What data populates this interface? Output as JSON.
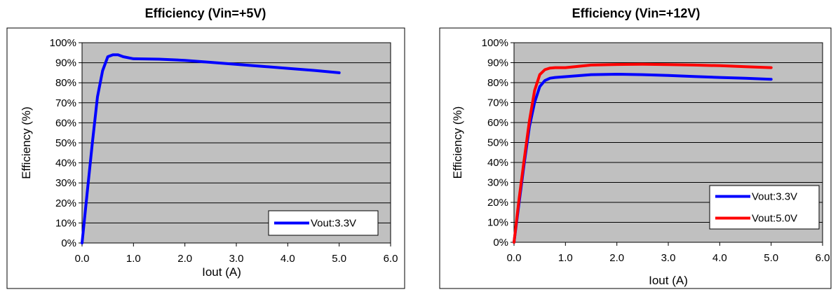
{
  "chart_data": [
    {
      "type": "line",
      "title": "Efficiency (Vin=+5V)",
      "xlabel": "Iout (A)",
      "ylabel": "Efficiency (%)",
      "xlim": [
        0,
        6
      ],
      "ylim": [
        0,
        100
      ],
      "x_ticks": [
        "0.0",
        "1.0",
        "2.0",
        "3.0",
        "4.0",
        "5.0",
        "6.0"
      ],
      "y_ticks": [
        "0%",
        "10%",
        "20%",
        "30%",
        "40%",
        "50%",
        "60%",
        "70%",
        "80%",
        "90%",
        "100%"
      ],
      "grid": true,
      "plot_background": "#c0c0c0",
      "legend_position": "bottom-right",
      "series": [
        {
          "name": "Vout:3.3V",
          "color": "#0000ff",
          "x": [
            0.0,
            0.1,
            0.2,
            0.3,
            0.4,
            0.5,
            0.6,
            0.7,
            0.8,
            1.0,
            1.5,
            2.0,
            2.5,
            3.0,
            3.5,
            4.0,
            4.5,
            5.0
          ],
          "y": [
            0,
            25,
            50,
            73,
            86,
            93,
            94,
            94,
            93,
            92,
            91.8,
            91.2,
            90.2,
            89.2,
            88.2,
            87.2,
            86.2,
            85
          ]
        }
      ]
    },
    {
      "type": "line",
      "title": "Efficiency (Vin=+12V)",
      "xlabel": "Iout (A)",
      "ylabel": "Efficiency (%)",
      "xlim": [
        0,
        6
      ],
      "ylim": [
        0,
        100
      ],
      "x_ticks": [
        "0.0",
        "1.0",
        "2.0",
        "3.0",
        "4.0",
        "5.0",
        "6.0"
      ],
      "y_ticks": [
        "0%",
        "10%",
        "20%",
        "30%",
        "40%",
        "50%",
        "60%",
        "70%",
        "80%",
        "90%",
        "100%"
      ],
      "grid": true,
      "plot_background": "#c0c0c0",
      "legend_position": "bottom-right",
      "series": [
        {
          "name": "Vout:3.3V",
          "color": "#0000ff",
          "x": [
            0.0,
            0.1,
            0.2,
            0.3,
            0.4,
            0.5,
            0.6,
            0.7,
            0.8,
            1.0,
            1.5,
            2.0,
            2.5,
            3.0,
            3.5,
            4.0,
            4.5,
            5.0
          ],
          "y": [
            0,
            20,
            40,
            58,
            70,
            78,
            81,
            82.2,
            82.6,
            83,
            84,
            84.2,
            84,
            83.6,
            83.1,
            82.6,
            82.2,
            81.7
          ]
        },
        {
          "name": "Vout:5.0V",
          "color": "#ff0000",
          "x": [
            0.0,
            0.1,
            0.2,
            0.3,
            0.4,
            0.5,
            0.6,
            0.7,
            0.8,
            1.0,
            1.5,
            2.0,
            2.5,
            3.0,
            3.5,
            4.0,
            4.5,
            5.0
          ],
          "y": [
            0,
            22,
            42,
            61,
            76,
            84,
            86.5,
            87.3,
            87.5,
            87.5,
            88.8,
            89.1,
            89.2,
            89,
            88.8,
            88.5,
            88,
            87.5
          ]
        }
      ]
    }
  ]
}
